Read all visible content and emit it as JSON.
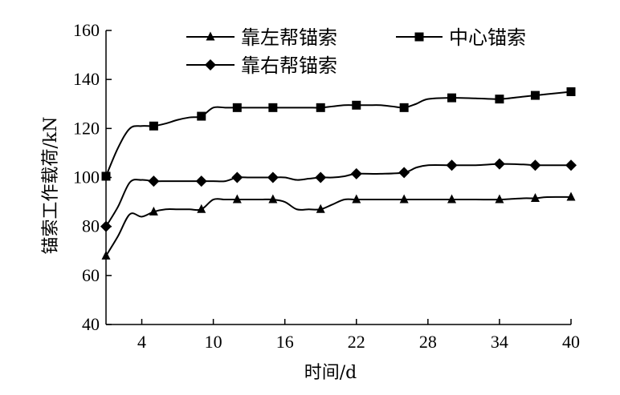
{
  "chart_data": {
    "type": "line",
    "xlabel": "时间/d",
    "ylabel": "锚索工作载荷/kN",
    "xlim": [
      1,
      40
    ],
    "ylim": [
      40,
      160
    ],
    "xticks": [
      4,
      10,
      16,
      22,
      28,
      34,
      40
    ],
    "yticks": [
      40,
      60,
      80,
      100,
      120,
      140,
      160
    ],
    "grid": false,
    "legend_position": "top",
    "series": [
      {
        "name": "靠左帮锚索",
        "marker": "triangle",
        "color": "#000000",
        "x": [
          1,
          5,
          9,
          12,
          15,
          19,
          22,
          26,
          30,
          34,
          37,
          40
        ],
        "y": [
          68,
          86,
          87,
          91,
          91,
          87,
          91,
          91,
          91,
          91,
          91.5,
          92
        ],
        "curve_x": [
          1,
          2,
          3,
          4,
          5,
          6,
          7,
          8,
          9,
          10,
          11,
          12,
          13,
          14,
          15,
          16,
          17,
          18,
          19,
          20,
          21,
          22,
          24,
          26,
          28,
          30,
          32,
          34,
          36,
          37,
          38,
          40
        ],
        "curve_y": [
          68,
          76,
          85,
          84,
          86,
          87,
          87,
          87,
          87,
          91,
          91,
          91,
          91,
          91,
          91,
          90,
          87,
          87,
          87,
          89,
          91,
          91,
          91,
          91,
          91,
          91,
          91,
          91,
          91.5,
          91.5,
          92,
          92
        ]
      },
      {
        "name": "中心锚索",
        "marker": "square",
        "color": "#000000",
        "x": [
          1,
          5,
          9,
          12,
          15,
          19,
          22,
          26,
          30,
          34,
          37,
          40
        ],
        "y": [
          100.5,
          121,
          125,
          128.5,
          128.5,
          128.5,
          129.5,
          128.5,
          132.5,
          132,
          133.5,
          135
        ],
        "curve_x": [
          1,
          2,
          3,
          4,
          5,
          6,
          7,
          8,
          9,
          10,
          11,
          12,
          13,
          14,
          15,
          16,
          17,
          18,
          19,
          20,
          21,
          22,
          23,
          24,
          25,
          26,
          27,
          28,
          30,
          32,
          34,
          36,
          37,
          38,
          40
        ],
        "curve_y": [
          100.5,
          112,
          120,
          121,
          121,
          122,
          123.5,
          124.5,
          125,
          128.5,
          128.5,
          128.5,
          128.5,
          128.5,
          128.5,
          128.5,
          128.5,
          128.5,
          128.5,
          129,
          129.5,
          129.5,
          129.5,
          129.5,
          129,
          128.5,
          130,
          132,
          132.5,
          132.3,
          132,
          133,
          133.5,
          134,
          135
        ]
      },
      {
        "name": "靠右帮锚索",
        "marker": "diamond",
        "color": "#000000",
        "x": [
          1,
          5,
          9,
          12,
          15,
          19,
          22,
          26,
          30,
          34,
          37,
          40
        ],
        "y": [
          80,
          98.5,
          98.5,
          100,
          100,
          100,
          101.5,
          102,
          105,
          105.5,
          105,
          105
        ],
        "curve_x": [
          1,
          2,
          3,
          4,
          5,
          6,
          7,
          8,
          9,
          10,
          11,
          12,
          13,
          14,
          15,
          16,
          17,
          18,
          19,
          20,
          21,
          22,
          24,
          26,
          27,
          28,
          30,
          32,
          34,
          36,
          37,
          38,
          40
        ],
        "curve_y": [
          80,
          88,
          98,
          99,
          98.5,
          98.5,
          98.5,
          98.5,
          98.5,
          98.5,
          98.5,
          100,
          100,
          100,
          100,
          100,
          99,
          99.5,
          100,
          100,
          100.5,
          101.5,
          101.5,
          102,
          104,
          105,
          105,
          105,
          105.5,
          105.3,
          105,
          105,
          105
        ]
      }
    ]
  }
}
